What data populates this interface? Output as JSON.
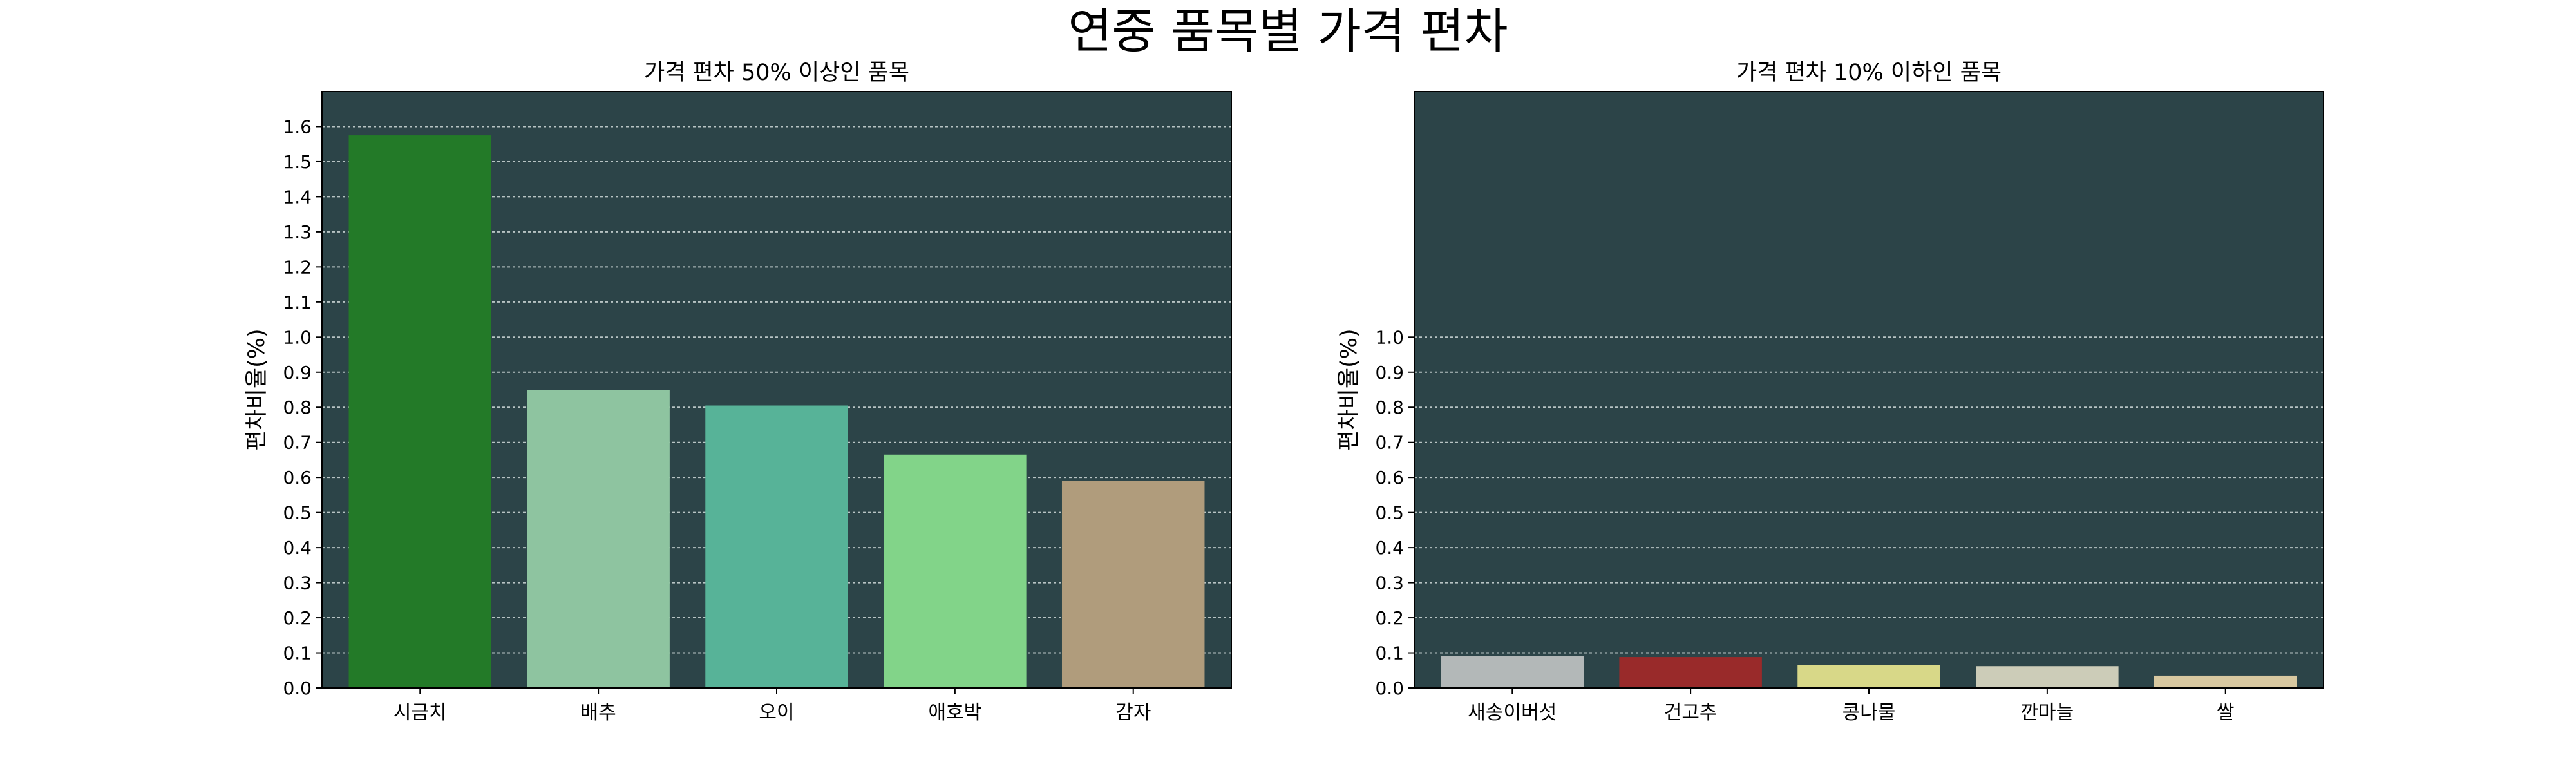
{
  "figure": {
    "suptitle": "연중 품목별 가격 편차",
    "plot_background": "#2c4448",
    "grid_color": "#b8c4c4"
  },
  "chart_data": [
    {
      "type": "bar",
      "title": "가격 편차 50% 이상인 품목",
      "ylabel": "편차비율(%)",
      "xlabel": "",
      "categories": [
        "시금치",
        "배추",
        "오이",
        "애호박",
        "감자"
      ],
      "values": [
        1.575,
        0.85,
        0.805,
        0.665,
        0.59
      ],
      "colors": [
        "#237a28",
        "#8ec4a0",
        "#57b398",
        "#82d489",
        "#b09c7c"
      ],
      "ylim": [
        0,
        1.7
      ],
      "yticks": [
        0.0,
        0.1,
        0.2,
        0.3,
        0.4,
        0.5,
        0.6,
        0.7,
        0.8,
        0.9,
        1.0,
        1.1,
        1.2,
        1.3,
        1.4,
        1.5,
        1.6
      ],
      "grid": true
    },
    {
      "type": "bar",
      "title": "가격 편차 10% 이하인 품목",
      "ylabel": "편차비율(%)",
      "xlabel": "",
      "categories": [
        "새송이버섯",
        "건고추",
        "콩나물",
        "깐마늘",
        "쌀"
      ],
      "values": [
        0.09,
        0.088,
        0.065,
        0.062,
        0.035
      ],
      "colors": [
        "#b3b8b8",
        "#992a2a",
        "#d8d888",
        "#ccccb8",
        "#d8c8a0"
      ],
      "ylim": [
        0,
        1.7
      ],
      "yticks": [
        0.0,
        0.1,
        0.2,
        0.3,
        0.4,
        0.5,
        0.6,
        0.7,
        0.8,
        0.9,
        1.0
      ],
      "grid": true
    }
  ]
}
